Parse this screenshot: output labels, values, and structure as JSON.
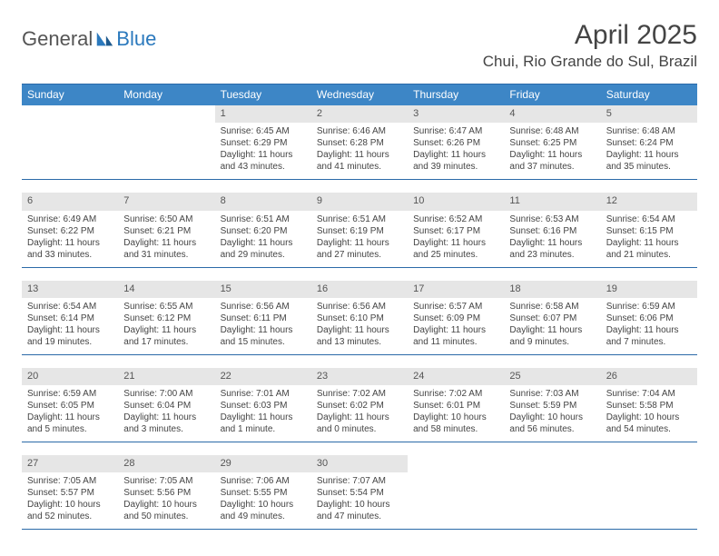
{
  "logo": {
    "part1": "General",
    "part2": "Blue"
  },
  "title": "April 2025",
  "location": "Chui, Rio Grande do Sul, Brazil",
  "colors": {
    "header_bg": "#3d86c6",
    "border": "#2b6aa8",
    "daynum_bg": "#e6e6e6",
    "text": "#444444",
    "logo_blue": "#2b79bd"
  },
  "days_of_week": [
    "Sunday",
    "Monday",
    "Tuesday",
    "Wednesday",
    "Thursday",
    "Friday",
    "Saturday"
  ],
  "weeks": [
    [
      null,
      null,
      {
        "n": "1",
        "sr": "6:45 AM",
        "ss": "6:29 PM",
        "dl": "11 hours and 43 minutes."
      },
      {
        "n": "2",
        "sr": "6:46 AM",
        "ss": "6:28 PM",
        "dl": "11 hours and 41 minutes."
      },
      {
        "n": "3",
        "sr": "6:47 AM",
        "ss": "6:26 PM",
        "dl": "11 hours and 39 minutes."
      },
      {
        "n": "4",
        "sr": "6:48 AM",
        "ss": "6:25 PM",
        "dl": "11 hours and 37 minutes."
      },
      {
        "n": "5",
        "sr": "6:48 AM",
        "ss": "6:24 PM",
        "dl": "11 hours and 35 minutes."
      }
    ],
    [
      {
        "n": "6",
        "sr": "6:49 AM",
        "ss": "6:22 PM",
        "dl": "11 hours and 33 minutes."
      },
      {
        "n": "7",
        "sr": "6:50 AM",
        "ss": "6:21 PM",
        "dl": "11 hours and 31 minutes."
      },
      {
        "n": "8",
        "sr": "6:51 AM",
        "ss": "6:20 PM",
        "dl": "11 hours and 29 minutes."
      },
      {
        "n": "9",
        "sr": "6:51 AM",
        "ss": "6:19 PM",
        "dl": "11 hours and 27 minutes."
      },
      {
        "n": "10",
        "sr": "6:52 AM",
        "ss": "6:17 PM",
        "dl": "11 hours and 25 minutes."
      },
      {
        "n": "11",
        "sr": "6:53 AM",
        "ss": "6:16 PM",
        "dl": "11 hours and 23 minutes."
      },
      {
        "n": "12",
        "sr": "6:54 AM",
        "ss": "6:15 PM",
        "dl": "11 hours and 21 minutes."
      }
    ],
    [
      {
        "n": "13",
        "sr": "6:54 AM",
        "ss": "6:14 PM",
        "dl": "11 hours and 19 minutes."
      },
      {
        "n": "14",
        "sr": "6:55 AM",
        "ss": "6:12 PM",
        "dl": "11 hours and 17 minutes."
      },
      {
        "n": "15",
        "sr": "6:56 AM",
        "ss": "6:11 PM",
        "dl": "11 hours and 15 minutes."
      },
      {
        "n": "16",
        "sr": "6:56 AM",
        "ss": "6:10 PM",
        "dl": "11 hours and 13 minutes."
      },
      {
        "n": "17",
        "sr": "6:57 AM",
        "ss": "6:09 PM",
        "dl": "11 hours and 11 minutes."
      },
      {
        "n": "18",
        "sr": "6:58 AM",
        "ss": "6:07 PM",
        "dl": "11 hours and 9 minutes."
      },
      {
        "n": "19",
        "sr": "6:59 AM",
        "ss": "6:06 PM",
        "dl": "11 hours and 7 minutes."
      }
    ],
    [
      {
        "n": "20",
        "sr": "6:59 AM",
        "ss": "6:05 PM",
        "dl": "11 hours and 5 minutes."
      },
      {
        "n": "21",
        "sr": "7:00 AM",
        "ss": "6:04 PM",
        "dl": "11 hours and 3 minutes."
      },
      {
        "n": "22",
        "sr": "7:01 AM",
        "ss": "6:03 PM",
        "dl": "11 hours and 1 minute."
      },
      {
        "n": "23",
        "sr": "7:02 AM",
        "ss": "6:02 PM",
        "dl": "11 hours and 0 minutes."
      },
      {
        "n": "24",
        "sr": "7:02 AM",
        "ss": "6:01 PM",
        "dl": "10 hours and 58 minutes."
      },
      {
        "n": "25",
        "sr": "7:03 AM",
        "ss": "5:59 PM",
        "dl": "10 hours and 56 minutes."
      },
      {
        "n": "26",
        "sr": "7:04 AM",
        "ss": "5:58 PM",
        "dl": "10 hours and 54 minutes."
      }
    ],
    [
      {
        "n": "27",
        "sr": "7:05 AM",
        "ss": "5:57 PM",
        "dl": "10 hours and 52 minutes."
      },
      {
        "n": "28",
        "sr": "7:05 AM",
        "ss": "5:56 PM",
        "dl": "10 hours and 50 minutes."
      },
      {
        "n": "29",
        "sr": "7:06 AM",
        "ss": "5:55 PM",
        "dl": "10 hours and 49 minutes."
      },
      {
        "n": "30",
        "sr": "7:07 AM",
        "ss": "5:54 PM",
        "dl": "10 hours and 47 minutes."
      },
      null,
      null,
      null
    ]
  ],
  "labels": {
    "sunrise": "Sunrise: ",
    "sunset": "Sunset: ",
    "daylight": "Daylight: "
  }
}
